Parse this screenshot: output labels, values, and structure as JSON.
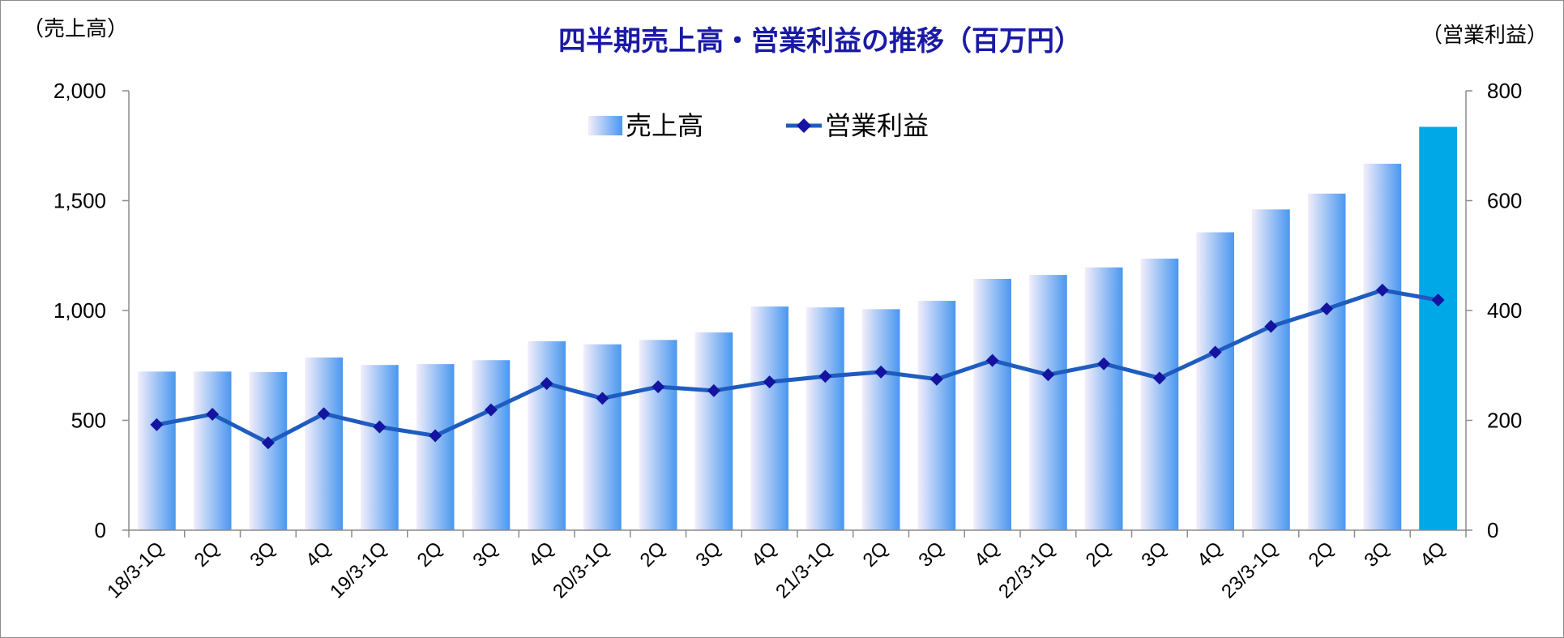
{
  "chart_data": {
    "type": "bar",
    "title": "四半期売上高・営業利益の推移（百万円）",
    "y_left_label": "（売上高）",
    "y_right_label": "（営業利益）",
    "y_left_range": [
      0,
      2000
    ],
    "y_right_range": [
      0,
      800
    ],
    "y_left_ticks": [
      "0",
      "500",
      "1,000",
      "1,500",
      "2,000"
    ],
    "y_right_ticks": [
      "0",
      "200",
      "400",
      "600",
      "800"
    ],
    "grid": false,
    "legend_position": "top-center",
    "categories": [
      "18/3-1Q",
      "2Q",
      "3Q",
      "4Q",
      "19/3-1Q",
      "2Q",
      "3Q",
      "4Q",
      "20/3-1Q",
      "2Q",
      "3Q",
      "4Q",
      "21/3-1Q",
      "2Q",
      "3Q",
      "4Q",
      "22/3-1Q",
      "2Q",
      "3Q",
      "4Q",
      "23/3-1Q",
      "2Q",
      "3Q",
      "4Q"
    ],
    "series": [
      {
        "name": "売上高",
        "type": "bar",
        "axis": "left",
        "color_start": "#f3eefa",
        "color_end": "#4a97ef",
        "highlight_color": "#00a8e8",
        "values": [
          722,
          722,
          720,
          786,
          752,
          756,
          774,
          860,
          846,
          866,
          900,
          1018,
          1014,
          1006,
          1044,
          1144,
          1162,
          1196,
          1236,
          1356,
          1460,
          1532,
          1668,
          1836
        ]
      },
      {
        "name": "営業利益",
        "type": "line",
        "axis": "right",
        "color": "#1e5cc0",
        "marker_color": "#1414a0",
        "values": [
          192,
          211,
          159,
          212,
          188,
          172,
          219,
          267,
          240,
          261,
          254,
          270,
          280,
          288,
          275,
          309,
          283,
          303,
          277,
          324,
          371,
          403,
          437,
          419
        ]
      }
    ]
  }
}
